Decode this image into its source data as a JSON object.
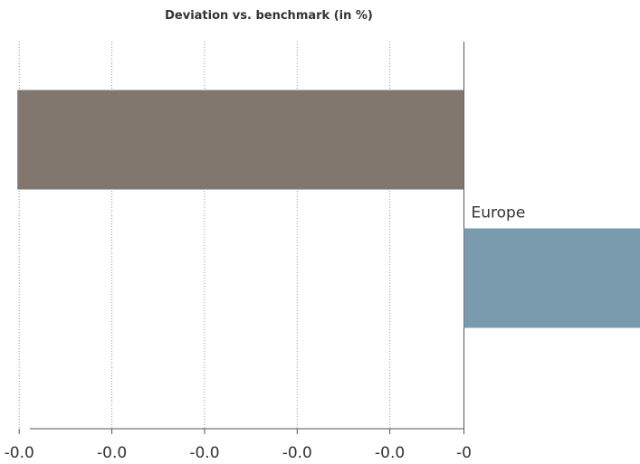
{
  "chart_data": {
    "type": "bar",
    "orientation": "horizontal",
    "title": "Deviation vs. benchmark (in %)",
    "xlabel": "",
    "ylabel": "",
    "xlim": [
      -0.0245,
      0.0095
    ],
    "x_ticks": [
      {
        "value": -0.024,
        "label": "-0.0"
      },
      {
        "value": -0.019,
        "label": "-0.0"
      },
      {
        "value": -0.014,
        "label": "-0.0"
      },
      {
        "value": -0.009,
        "label": "-0.0"
      },
      {
        "value": -0.004,
        "label": "-0.0"
      },
      {
        "value": 0,
        "label": "-0"
      }
    ],
    "grid": true,
    "bars": [
      {
        "category": "",
        "value": -0.0241,
        "color": "#81776e"
      },
      {
        "category": "Europe",
        "value": 0.0095,
        "color": "#7a9aae"
      }
    ]
  }
}
